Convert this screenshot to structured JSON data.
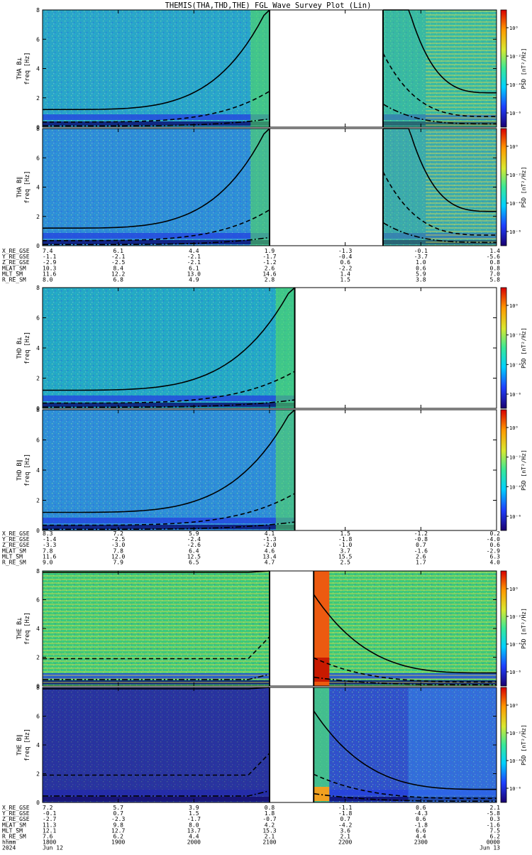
{
  "title": "THEMIS(THA,THD,THE) FGL Wave Survey Plot (Lin)",
  "colorbar": {
    "label": "PSD [nT²/Hz]",
    "tick_labels": [
      "10⁰",
      "10⁻²",
      "10⁻⁴",
      "10⁻⁶"
    ],
    "scale": "log",
    "colors": [
      "#1a0070",
      "#1f3fff",
      "#00d0ff",
      "#38e898",
      "#d8e830",
      "#ff9a00",
      "#d80000"
    ]
  },
  "chart_data": [
    {
      "type": "heatmap",
      "probe": "THA",
      "ylabel": "THA B⊥\nfreq [Hz]",
      "y_ticks": [
        "0",
        "2",
        "4",
        "6",
        "8"
      ],
      "ylim": [
        0,
        8
      ],
      "x_range_hhmm": [
        "1800",
        "0000"
      ],
      "data_gaps_hhmm": [
        [
          "2100",
          "2230"
        ]
      ],
      "bg": "#2aa5c8",
      "hot_region": null
    },
    {
      "type": "heatmap",
      "probe": "THA",
      "ylabel": "THA B∥\nfreq [Hz]",
      "y_ticks": [
        "0",
        "2",
        "4",
        "6",
        "8"
      ],
      "ylim": [
        0,
        8
      ],
      "x_range_hhmm": [
        "1800",
        "0000"
      ],
      "data_gaps_hhmm": [
        [
          "2100",
          "2230"
        ]
      ],
      "bg": "#2f8ed6",
      "hot_region": null
    },
    {
      "type": "heatmap",
      "probe": "THD",
      "ylabel": "THD B⊥\nfreq [Hz]",
      "y_ticks": [
        "0",
        "2",
        "4",
        "6",
        "8"
      ],
      "ylim": [
        0,
        8
      ],
      "x_range_hhmm": [
        "1800",
        "0000"
      ],
      "data_gaps_hhmm": [
        [
          "2120",
          "0000"
        ]
      ],
      "bg": "#25a8c4",
      "hot_region": null
    },
    {
      "type": "heatmap",
      "probe": "THD",
      "ylabel": "THD B∥\nfreq [Hz]",
      "y_ticks": [
        "0",
        "2",
        "4",
        "6",
        "8"
      ],
      "ylim": [
        0,
        8
      ],
      "x_range_hhmm": [
        "1800",
        "0000"
      ],
      "data_gaps_hhmm": [
        [
          "2120",
          "0000"
        ]
      ],
      "bg": "#2f8ed6",
      "hot_region": null
    },
    {
      "type": "heatmap",
      "probe": "THE",
      "ylabel": "THE B⊥\nfreq [Hz]",
      "y_ticks": [
        "0",
        "2",
        "4",
        "6",
        "8"
      ],
      "ylim": [
        0,
        8
      ],
      "x_range_hhmm": [
        "1800",
        "0000"
      ],
      "data_gaps_hhmm": [
        [
          "2100",
          "2135"
        ]
      ],
      "bg": "#3ec878",
      "hot_region": "orange"
    },
    {
      "type": "heatmap",
      "probe": "THE",
      "ylabel": "THE B∥\nfreq [Hz]",
      "y_ticks": [
        "0",
        "2",
        "4",
        "6",
        "8"
      ],
      "ylim": [
        0,
        8
      ],
      "x_range_hhmm": [
        "1800",
        "0000"
      ],
      "data_gaps_hhmm": [
        [
          "2100",
          "2135"
        ]
      ],
      "bg": "#3152c8",
      "hot_region": "light"
    }
  ],
  "ephemeris": [
    {
      "rows": [
        {
          "label": "X_RE_GSE",
          "values": [
            "7.4",
            "6.1",
            "4.4",
            "1.9",
            "-1.3",
            "-0.1",
            "1.4"
          ]
        },
        {
          "label": "Y_RE_GSE",
          "values": [
            "-1.1",
            "-2.1",
            "-2.1",
            "-1.7",
            "-0.4",
            "-3.7",
            "-5.6"
          ]
        },
        {
          "label": "Z_RE_GSE",
          "values": [
            "-2.9",
            "-2.5",
            "-2.1",
            "-1.2",
            "0.6",
            "1.0",
            "0.8"
          ]
        },
        {
          "label": "MLAT_SM",
          "values": [
            "10.3",
            "8.4",
            "6.1",
            "2.6",
            "-2.2",
            "0.6",
            "0.8"
          ]
        },
        {
          "label": "MLT_SM",
          "values": [
            "11.6",
            "12.2",
            "13.0",
            "14.6",
            "1.4",
            "5.9",
            "7.0"
          ]
        },
        {
          "label": "R_RE_SM",
          "values": [
            "8.0",
            "6.8",
            "4.9",
            "2.8",
            "1.5",
            "3.8",
            "5.8"
          ]
        }
      ]
    },
    {
      "rows": [
        {
          "label": "X_RE_GSE",
          "values": [
            "8.3",
            "7.2",
            "5.9",
            "4.1",
            "1.5",
            "-1.2",
            "0.2"
          ]
        },
        {
          "label": "Y_RE_GSE",
          "values": [
            "-1.4",
            "-2.5",
            "-2.4",
            "-1.3",
            "-1.8",
            "-0.8",
            "-4.0"
          ]
        },
        {
          "label": "Z_RE_GSE",
          "values": [
            "-3.3",
            "-3.0",
            "-2.6",
            "-2.0",
            "-1.0",
            "0.7",
            "0.6"
          ]
        },
        {
          "label": "MLAT_SM",
          "values": [
            "7.8",
            "7.8",
            "6.4",
            "4.6",
            "3.7",
            "-1.6",
            "-2.9"
          ]
        },
        {
          "label": "MLT_SM",
          "values": [
            "11.6",
            "12.0",
            "12.5",
            "13.4",
            "15.5",
            "2.6",
            "6.3"
          ]
        },
        {
          "label": "R_RE_SM",
          "values": [
            "9.0",
            "7.9",
            "6.5",
            "4.7",
            "2.5",
            "1.7",
            "4.0"
          ]
        }
      ]
    },
    {
      "rows": [
        {
          "label": "X_RE_GSE",
          "values": [
            "7.2",
            "5.7",
            "3.9",
            "0.8",
            "-1.1",
            "0.6",
            "2.1"
          ]
        },
        {
          "label": "Y_RE_GSE",
          "values": [
            "-0.1",
            "0.7",
            "1.5",
            "1.8",
            "-1.8",
            "-4.3",
            "-5.8"
          ]
        },
        {
          "label": "Z_RE_GSE",
          "values": [
            "-2.7",
            "-2.3",
            "-1.7",
            "-0.7",
            "0.7",
            "0.6",
            "0.3"
          ]
        },
        {
          "label": "MLAT_SM",
          "values": [
            "11.3",
            "9.8",
            "8.0",
            "4.2",
            "-4.2",
            "-1.8",
            "-1.6"
          ]
        },
        {
          "label": "MLT_SM",
          "values": [
            "12.1",
            "12.7",
            "13.7",
            "15.3",
            "3.6",
            "6.6",
            "7.5"
          ]
        },
        {
          "label": "R_RE_SM",
          "values": [
            "7.6",
            "6.2",
            "4.4",
            "2.1",
            "2.1",
            "4.4",
            "6.2"
          ]
        },
        {
          "label": "hhmm",
          "values": [
            "1800",
            "1900",
            "2000",
            "2100",
            "2200",
            "2300",
            "0000"
          ]
        },
        {
          "label": "2024",
          "values": [
            "Jun 12",
            "",
            "",
            "",
            "",
            "",
            "Jun 13"
          ]
        }
      ]
    }
  ]
}
